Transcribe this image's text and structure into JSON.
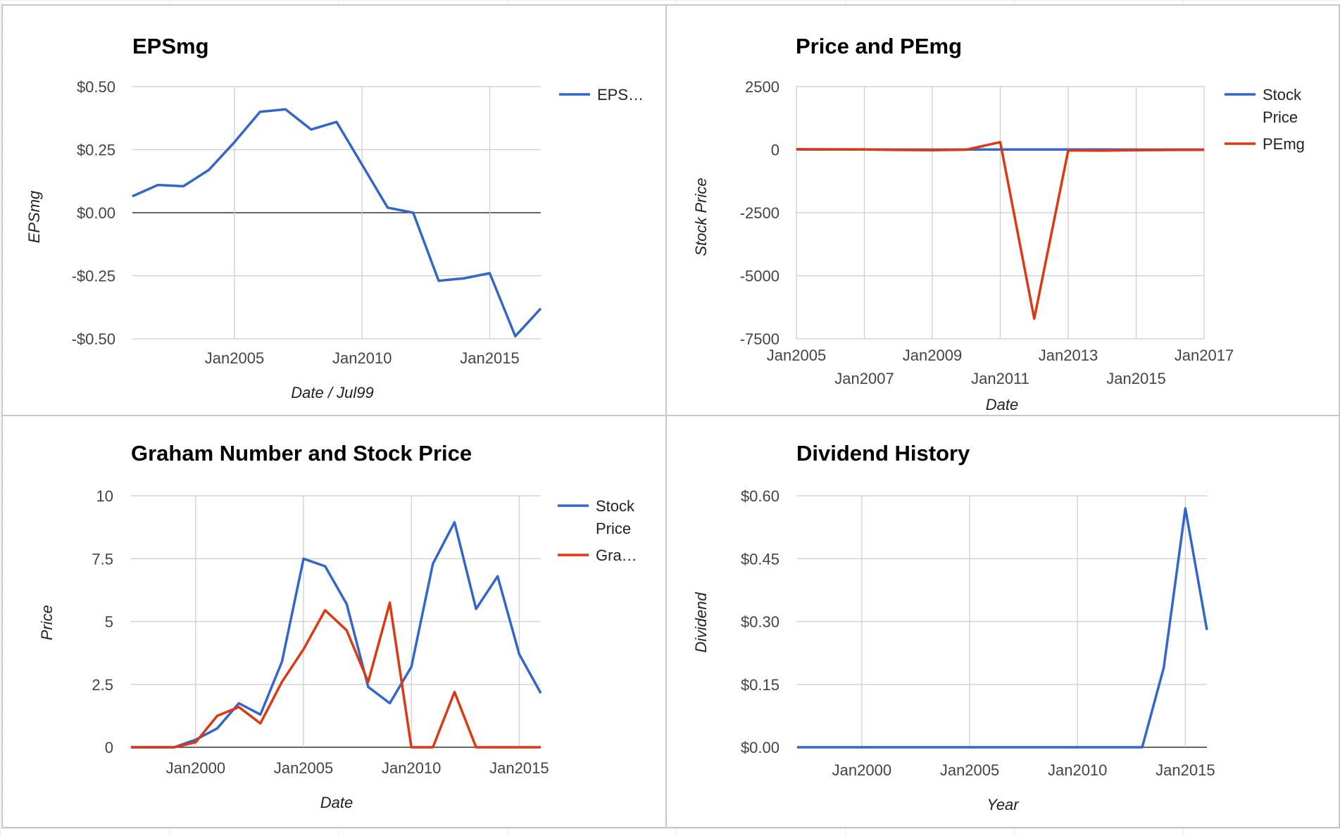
{
  "chart_data": [
    {
      "type": "line",
      "title": "EPSmg",
      "xlabel": "Date / Jul99",
      "ylabel": "EPSmg",
      "x_ticks": [
        "Jan2005",
        "Jan2010",
        "Jan2015"
      ],
      "y_ticks": [
        "$0.50",
        "$0.25",
        "$0.00",
        "-$0.25",
        "-$0.50"
      ],
      "ylim": [
        -0.5,
        0.5
      ],
      "xlim": [
        2001.0,
        2017.0
      ],
      "grid": true,
      "legend_position": "right",
      "legend": [
        "EPS…"
      ],
      "series": [
        {
          "name": "EPS…",
          "color": "#3366cc",
          "points": [
            [
              2001.0,
              0.065
            ],
            [
              2002.0,
              0.11
            ],
            [
              2003.0,
              0.105
            ],
            [
              2004.0,
              0.17
            ],
            [
              2005.0,
              0.28
            ],
            [
              2006.0,
              0.4
            ],
            [
              2007.0,
              0.41
            ],
            [
              2008.0,
              0.33
            ],
            [
              2009.0,
              0.36
            ],
            [
              2010.0,
              0.19
            ],
            [
              2011.0,
              0.02
            ],
            [
              2012.0,
              0.0
            ],
            [
              2013.0,
              -0.27
            ],
            [
              2014.0,
              -0.26
            ],
            [
              2015.0,
              -0.24
            ],
            [
              2016.0,
              -0.49
            ],
            [
              2017.0,
              -0.38
            ]
          ]
        }
      ]
    },
    {
      "type": "line",
      "title": "Price and PEmg",
      "xlabel": "Date",
      "ylabel": "Stock Price",
      "x_ticks_row1": [
        "Jan2005",
        "Jan2009",
        "Jan2013",
        "Jan2017"
      ],
      "x_ticks_row2": [
        "Jan2007",
        "Jan2011",
        "Jan2015"
      ],
      "y_ticks": [
        "2500",
        "0",
        "-2500",
        "-5000",
        "-7500"
      ],
      "ylim": [
        -7500,
        2500
      ],
      "xlim": [
        2005.0,
        2017.0
      ],
      "grid": true,
      "legend_position": "right",
      "legend": [
        "Stock Price",
        "PEmg"
      ],
      "series": [
        {
          "name": "Stock Price",
          "color": "#3366cc",
          "points": [
            [
              2005.0,
              7.5
            ],
            [
              2006.0,
              7.2
            ],
            [
              2007.0,
              5.7
            ],
            [
              2008.0,
              2.4
            ],
            [
              2009.0,
              1.8
            ],
            [
              2010.0,
              3.2
            ],
            [
              2011.0,
              7.3
            ],
            [
              2012.0,
              9.0
            ],
            [
              2013.0,
              5.5
            ],
            [
              2014.0,
              6.8
            ],
            [
              2015.0,
              3.7
            ],
            [
              2016.0,
              2.2
            ],
            [
              2017.0,
              2.0
            ]
          ]
        },
        {
          "name": "PEmg",
          "color": "#dc3912",
          "points": [
            [
              2005.0,
              20
            ],
            [
              2006.0,
              15
            ],
            [
              2007.0,
              10
            ],
            [
              2008.0,
              -10
            ],
            [
              2009.0,
              -20
            ],
            [
              2010.0,
              0
            ],
            [
              2011.0,
              300
            ],
            [
              2012.0,
              -6700
            ],
            [
              2013.0,
              -30
            ],
            [
              2014.0,
              -40
            ],
            [
              2015.0,
              -20
            ],
            [
              2016.0,
              -10
            ],
            [
              2017.0,
              -5
            ]
          ]
        }
      ]
    },
    {
      "type": "line",
      "title": "Graham Number and Stock Price",
      "xlabel": "Date",
      "ylabel": "Price",
      "x_ticks": [
        "Jan2000",
        "Jan2005",
        "Jan2010",
        "Jan2015"
      ],
      "y_ticks": [
        "10",
        "7.5",
        "5",
        "2.5",
        "0"
      ],
      "ylim": [
        0,
        10
      ],
      "xlim": [
        1997.0,
        2016.0
      ],
      "grid": true,
      "legend_position": "right",
      "legend": [
        "Stock Price",
        "Gra…"
      ],
      "series": [
        {
          "name": "Stock Price",
          "color": "#3366cc",
          "points": [
            [
              1997.0,
              0
            ],
            [
              1998.0,
              0
            ],
            [
              1999.0,
              0
            ],
            [
              2000.0,
              0.3
            ],
            [
              2001.0,
              0.75
            ],
            [
              2002.0,
              1.75
            ],
            [
              2003.0,
              1.3
            ],
            [
              2004.0,
              3.4
            ],
            [
              2005.0,
              7.5
            ],
            [
              2006.0,
              7.2
            ],
            [
              2007.0,
              5.7
            ],
            [
              2008.0,
              2.4
            ],
            [
              2009.0,
              1.75
            ],
            [
              2010.0,
              3.2
            ],
            [
              2011.0,
              7.3
            ],
            [
              2012.0,
              8.95
            ],
            [
              2013.0,
              5.5
            ],
            [
              2014.0,
              6.8
            ],
            [
              2015.0,
              3.7
            ],
            [
              2016.0,
              2.15
            ]
          ]
        },
        {
          "name": "Gra…",
          "color": "#dc3912",
          "points": [
            [
              1997.0,
              0
            ],
            [
              1998.0,
              0
            ],
            [
              1999.0,
              0
            ],
            [
              2000.0,
              0.2
            ],
            [
              2001.0,
              1.25
            ],
            [
              2002.0,
              1.6
            ],
            [
              2003.0,
              0.95
            ],
            [
              2004.0,
              2.6
            ],
            [
              2005.0,
              3.9
            ],
            [
              2006.0,
              5.45
            ],
            [
              2007.0,
              4.65
            ],
            [
              2008.0,
              2.6
            ],
            [
              2009.0,
              5.75
            ],
            [
              2010.0,
              0
            ],
            [
              2011.0,
              0
            ],
            [
              2012.0,
              2.2
            ],
            [
              2013.0,
              0
            ],
            [
              2014.0,
              0
            ],
            [
              2015.0,
              0
            ],
            [
              2016.0,
              0
            ]
          ]
        }
      ]
    },
    {
      "type": "line",
      "title": "Dividend History",
      "xlabel": "Year",
      "ylabel": "Dividend",
      "x_ticks": [
        "Jan2000",
        "Jan2005",
        "Jan2010",
        "Jan2015"
      ],
      "y_ticks": [
        "$0.60",
        "$0.45",
        "$0.30",
        "$0.15",
        "$0.00"
      ],
      "ylim": [
        0,
        0.6
      ],
      "xlim": [
        1997.0,
        2016.0
      ],
      "grid": true,
      "legend_position": "none",
      "series": [
        {
          "color": "#3366cc",
          "points": [
            [
              1997.0,
              0
            ],
            [
              2013.0,
              0
            ],
            [
              2014.0,
              0.19
            ],
            [
              2015.0,
              0.57
            ],
            [
              2016.0,
              0.28
            ]
          ]
        }
      ]
    }
  ]
}
